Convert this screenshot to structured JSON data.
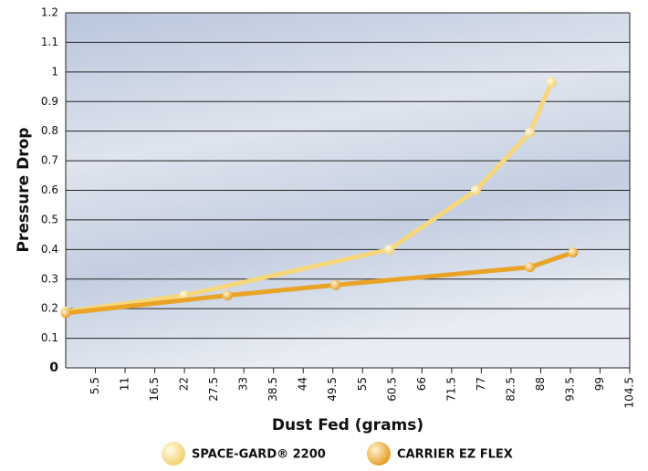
{
  "chart_data": {
    "type": "line",
    "x_label": "Dust Fed (grams)",
    "y_label": "Pressure Drop",
    "xlim": [
      0,
      104.5
    ],
    "ylim": [
      0,
      1.2
    ],
    "xticks": [
      5.5,
      11,
      16.5,
      22,
      27.5,
      33,
      38.5,
      44,
      49.5,
      55,
      60.5,
      66,
      71.5,
      77,
      82.5,
      88,
      93.5,
      99,
      104.5
    ],
    "yticks": [
      0,
      0.1,
      0.2,
      0.3,
      0.4,
      0.5,
      0.6,
      0.7,
      0.8,
      0.9,
      1,
      1.1,
      1.2
    ],
    "grid": true,
    "legend": "bottom",
    "series": [
      {
        "name": "SPACE-GARD® 2200",
        "color": "#f6d77c",
        "x": [
          0,
          22,
          60,
          76,
          86,
          90
        ],
        "values": [
          0.19,
          0.245,
          0.4,
          0.6,
          0.795,
          0.965
        ]
      },
      {
        "name": "CARRIER EZ FLEX",
        "color": "#e9a428",
        "x": [
          0,
          30,
          50,
          86,
          94
        ],
        "values": [
          0.185,
          0.245,
          0.28,
          0.34,
          0.39
        ]
      }
    ]
  }
}
